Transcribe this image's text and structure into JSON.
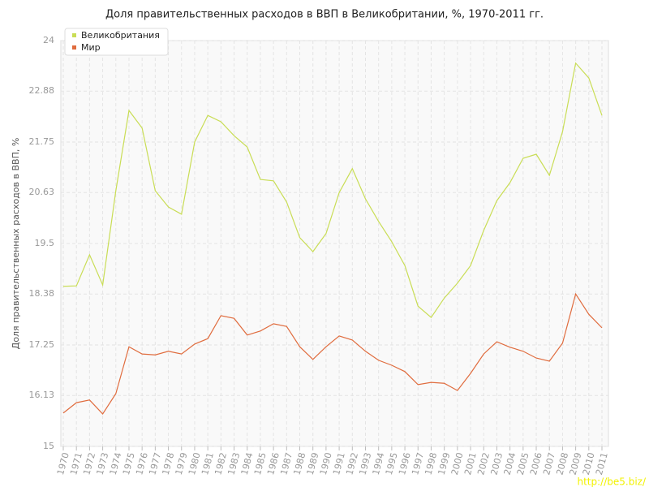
{
  "chart_data": {
    "type": "line",
    "title": "Доля правительственных расходов в ВВП в Великобритании, %, 1970-2011 гг.",
    "y_label": "Доля правительственных расходов в ВВП, %",
    "categories": [
      "1970",
      "1971",
      "1972",
      "1973",
      "1974",
      "1975",
      "1976",
      "1977",
      "1978",
      "1979",
      "1980",
      "1981",
      "1982",
      "1983",
      "1984",
      "1985",
      "1986",
      "1987",
      "1988",
      "1989",
      "1990",
      "1991",
      "1992",
      "1993",
      "1994",
      "1995",
      "1996",
      "1997",
      "1998",
      "1999",
      "2000",
      "2001",
      "2002",
      "2003",
      "2004",
      "2005",
      "2006",
      "2007",
      "2008",
      "2009",
      "2010",
      "2011"
    ],
    "series": [
      {
        "name": "Великобритания",
        "color": "#c9dd55",
        "values": [
          18.55,
          18.56,
          19.25,
          18.58,
          20.67,
          22.45,
          22.06,
          20.67,
          20.31,
          20.15,
          21.75,
          22.34,
          22.2,
          21.89,
          21.64,
          20.92,
          20.89,
          20.42,
          19.63,
          19.32,
          19.72,
          20.63,
          21.16,
          20.49,
          19.99,
          19.54,
          19.01,
          18.11,
          17.86,
          18.29,
          18.62,
          19.01,
          19.79,
          20.45,
          20.85,
          21.39,
          21.48,
          21.01,
          21.98,
          23.5,
          23.17,
          22.34
        ]
      },
      {
        "name": "Мир",
        "color": "#e06c3e",
        "values": [
          15.74,
          15.97,
          16.03,
          15.72,
          16.17,
          17.21,
          17.05,
          17.03,
          17.11,
          17.05,
          17.27,
          17.39,
          17.9,
          17.84,
          17.47,
          17.56,
          17.72,
          17.66,
          17.21,
          16.93,
          17.21,
          17.45,
          17.36,
          17.11,
          16.91,
          16.8,
          16.66,
          16.37,
          16.42,
          16.4,
          16.24,
          16.62,
          17.05,
          17.32,
          17.2,
          17.11,
          16.96,
          16.89,
          17.29,
          18.38,
          17.93,
          17.63
        ]
      }
    ],
    "ylim": [
      15,
      24
    ],
    "yticks": [
      15,
      16.13,
      17.25,
      18.38,
      19.5,
      20.63,
      21.75,
      22.88,
      24
    ],
    "grid": true,
    "legend": "top-left",
    "watermark": "http://be5.biz/"
  }
}
